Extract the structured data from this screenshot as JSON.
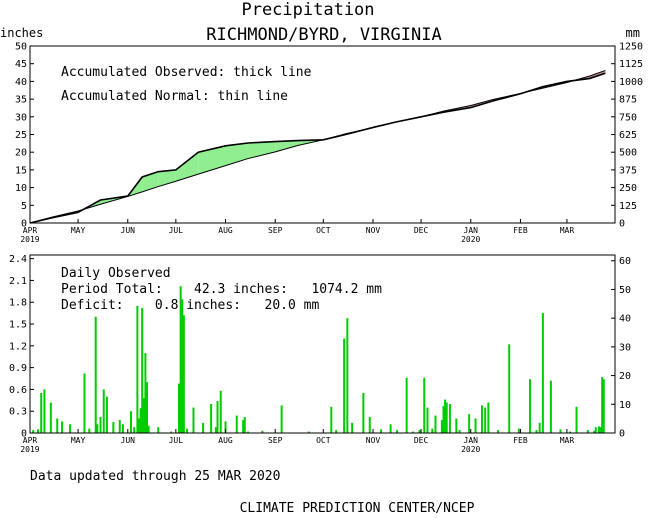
{
  "header": {
    "title": "Precipitation",
    "station": "RICHMOND/BYRD, VIRGINIA"
  },
  "footer": {
    "updated": "Data updated through 25 MAR 2020",
    "credit": "CLIMATE PREDICTION CENTER/NCEP"
  },
  "colors": {
    "surplus": "#90ee90",
    "deficit": "#bc8f8f",
    "bars": "#00cc00",
    "axes": "#000000"
  },
  "chart_data": [
    {
      "type": "area",
      "left_axis_label": "inches",
      "right_axis_label": "mm",
      "annotations": [
        "Accumulated Observed: thick line",
        "Accumulated Normal: thin line"
      ],
      "x_ticks": [
        "APR",
        "MAY",
        "JUN",
        "JUL",
        "AUG",
        "SEP",
        "OCT",
        "NOV",
        "DEC",
        "JAN",
        "FEB",
        "MAR"
      ],
      "year_labels": {
        "APR": "2019",
        "JAN": "2020"
      },
      "ylim": [
        0,
        50
      ],
      "yticks": [
        0,
        5,
        10,
        15,
        20,
        25,
        30,
        35,
        40,
        45,
        50
      ],
      "ylim_right": [
        0,
        1250
      ],
      "yticks_right": [
        0,
        125,
        250,
        375,
        500,
        625,
        750,
        875,
        1000,
        1125,
        1250
      ],
      "grid": false,
      "x": [
        "2019-04-01",
        "2019-04-15",
        "2019-05-01",
        "2019-05-15",
        "2019-06-01",
        "2019-06-10",
        "2019-06-20",
        "2019-07-01",
        "2019-07-15",
        "2019-08-01",
        "2019-08-15",
        "2019-09-01",
        "2019-09-15",
        "2019-10-01",
        "2019-10-15",
        "2019-11-01",
        "2019-11-15",
        "2019-12-01",
        "2019-12-15",
        "2020-01-01",
        "2020-01-15",
        "2020-02-01",
        "2020-02-15",
        "2020-03-01",
        "2020-03-15",
        "2020-03-25"
      ],
      "series": [
        {
          "name": "Accumulated Observed",
          "values": [
            0.0,
            1.5,
            3.0,
            6.5,
            7.6,
            13.0,
            14.5,
            15.0,
            20.0,
            21.8,
            22.6,
            23.0,
            23.3,
            23.5,
            25.0,
            27.0,
            28.5,
            30.0,
            31.3,
            32.6,
            34.5,
            36.5,
            38.5,
            40.0,
            40.8,
            42.3
          ]
        },
        {
          "name": "Accumulated Normal",
          "values": [
            0.0,
            1.7,
            3.4,
            5.3,
            7.5,
            8.8,
            10.3,
            11.8,
            13.8,
            16.2,
            18.2,
            20.1,
            21.9,
            23.5,
            25.2,
            26.9,
            28.5,
            30.0,
            31.6,
            33.2,
            34.9,
            36.6,
            38.1,
            39.7,
            41.5,
            43.1
          ]
        }
      ]
    },
    {
      "type": "bar",
      "left_axis_label": "",
      "right_axis_label": "",
      "annotations": [
        "Daily Observed",
        "Period Total:    42.3 inches:   1074.2 mm",
        "Deficit:    0.8 inches:   20.0 mm"
      ],
      "x_ticks": [
        "APR",
        "MAY",
        "JUN",
        "JUL",
        "AUG",
        "SEP",
        "OCT",
        "NOV",
        "DEC",
        "JAN",
        "FEB",
        "MAR"
      ],
      "year_labels": {
        "APR": "2019",
        "JAN": "2020"
      },
      "ylim": [
        0,
        2.45
      ],
      "yticks": [
        0,
        0.3,
        0.6,
        0.9,
        1.2,
        1.5,
        1.8,
        2.1,
        2.4
      ],
      "ylim_right": [
        0,
        62
      ],
      "yticks_right": [
        0,
        10,
        20,
        30,
        40,
        50,
        60
      ],
      "x": [
        "2019-04-03",
        "2019-04-06",
        "2019-04-08",
        "2019-04-10",
        "2019-04-14",
        "2019-04-18",
        "2019-04-21",
        "2019-04-26",
        "2019-05-05",
        "2019-05-08",
        "2019-05-12",
        "2019-05-13",
        "2019-05-15",
        "2019-05-17",
        "2019-05-19",
        "2019-05-23",
        "2019-05-27",
        "2019-05-29",
        "2019-06-03",
        "2019-06-05",
        "2019-06-07",
        "2019-06-08",
        "2019-06-09",
        "2019-06-10",
        "2019-06-11",
        "2019-06-12",
        "2019-06-13",
        "2019-06-14",
        "2019-06-20",
        "2019-06-28",
        "2019-07-03",
        "2019-07-04",
        "2019-07-05",
        "2019-07-06",
        "2019-07-08",
        "2019-07-12",
        "2019-07-18",
        "2019-07-23",
        "2019-07-26",
        "2019-07-27",
        "2019-07-29",
        "2019-08-01",
        "2019-08-08",
        "2019-08-12",
        "2019-08-13",
        "2019-08-15",
        "2019-08-24",
        "2019-09-05",
        "2019-09-22",
        "2019-10-06",
        "2019-10-09",
        "2019-10-14",
        "2019-10-16",
        "2019-10-19",
        "2019-10-26",
        "2019-10-30",
        "2019-11-06",
        "2019-11-12",
        "2019-11-16",
        "2019-11-22",
        "2019-11-26",
        "2019-11-30",
        "2019-12-03",
        "2019-12-05",
        "2019-12-08",
        "2019-12-10",
        "2019-12-14",
        "2019-12-15",
        "2019-12-16",
        "2019-12-17",
        "2019-12-19",
        "2019-12-23",
        "2019-12-25",
        "2019-12-31",
        "2020-01-04",
        "2020-01-08",
        "2020-01-10",
        "2020-01-12",
        "2020-01-18",
        "2020-01-25",
        "2020-01-31",
        "2020-02-07",
        "2020-02-11",
        "2020-02-13",
        "2020-02-15",
        "2020-02-20",
        "2020-02-26",
        "2020-03-03",
        "2020-03-07",
        "2020-03-14",
        "2020-03-18",
        "2020-03-19",
        "2020-03-21",
        "2020-03-22",
        "2020-03-23",
        "2020-03-24"
      ],
      "values": [
        0.04,
        0.05,
        0.55,
        0.6,
        0.42,
        0.2,
        0.16,
        0.12,
        0.82,
        0.06,
        1.6,
        0.12,
        0.22,
        0.6,
        0.5,
        0.15,
        0.18,
        0.12,
        0.3,
        0.08,
        1.75,
        0.2,
        0.34,
        1.72,
        0.48,
        1.1,
        0.7,
        0.1,
        0.08,
        0.02,
        0.68,
        2.02,
        1.84,
        1.62,
        0.06,
        0.35,
        0.14,
        0.4,
        0.08,
        0.44,
        0.58,
        0.16,
        0.24,
        0.18,
        0.22,
        0.02,
        0.03,
        0.38,
        0.02,
        0.36,
        0.04,
        1.3,
        1.58,
        0.14,
        0.55,
        0.22,
        0.05,
        0.12,
        0.04,
        0.76,
        0.02,
        0.04,
        0.76,
        0.35,
        0.06,
        0.24,
        0.18,
        0.37,
        0.46,
        0.42,
        0.4,
        0.2,
        0.04,
        0.26,
        0.2,
        0.38,
        0.35,
        0.42,
        0.04,
        1.22,
        0.06,
        0.74,
        0.04,
        0.14,
        1.65,
        0.72,
        0.05,
        0.02,
        0.36,
        0.04,
        0.03,
        0.08,
        0.09,
        0.08,
        0.77,
        0.74
      ]
    }
  ]
}
